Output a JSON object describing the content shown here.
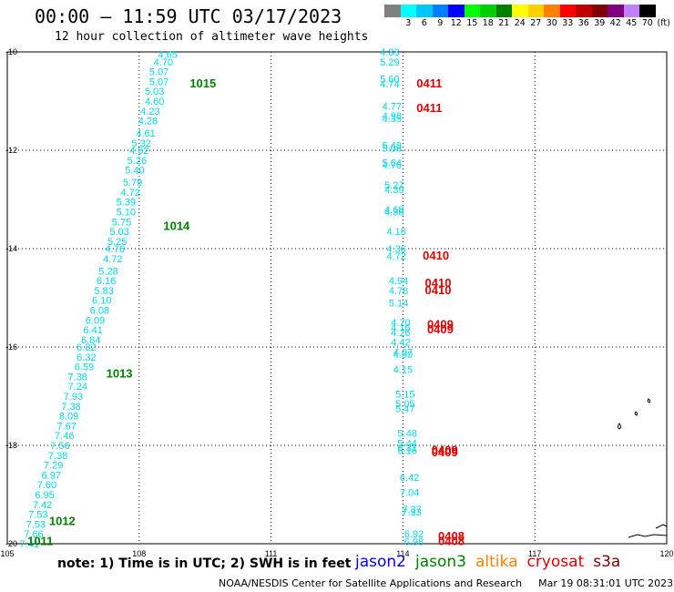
{
  "header": {
    "title": "00:00 – 11:59 UTC 03/17/2023",
    "subtitle": "12 hour collection of altimeter wave heights"
  },
  "legend": {
    "unit": "(ft)",
    "items": [
      {
        "label": "",
        "color": "#808080"
      },
      {
        "label": "3",
        "color": "#00ffff"
      },
      {
        "label": "6",
        "color": "#00c8ff"
      },
      {
        "label": "9",
        "color": "#0080ff"
      },
      {
        "label": "12",
        "color": "#0000ff"
      },
      {
        "label": "15",
        "color": "#00ff00"
      },
      {
        "label": "18",
        "color": "#00d000"
      },
      {
        "label": "21",
        "color": "#008000"
      },
      {
        "label": "24",
        "color": "#ffff00"
      },
      {
        "label": "27",
        "color": "#ffd000"
      },
      {
        "label": "30",
        "color": "#ff8000"
      },
      {
        "label": "33",
        "color": "#ff0000"
      },
      {
        "label": "36",
        "color": "#c00000"
      },
      {
        "label": "39",
        "color": "#800000"
      },
      {
        "label": "42",
        "color": "#800080"
      },
      {
        "label": "45",
        "color": "#c080ff"
      },
      {
        "label": "70",
        "color": "#000000"
      }
    ]
  },
  "map": {
    "lon_ticks": [
      "105",
      "108",
      "111",
      "114",
      "117",
      "120"
    ],
    "lat_ticks": [
      "-10",
      "-12",
      "-14",
      "-16",
      "-18",
      "-20"
    ],
    "wave_color": "#00d8e8",
    "time_colors": {
      "jason3": "#008000",
      "cryosat": "#e00000"
    },
    "track1": [
      {
        "lon": 108.65,
        "lat": -10.05,
        "v": "4.65"
      },
      {
        "lon": 108.55,
        "lat": -10.2,
        "v": "4.70"
      },
      {
        "lon": 108.45,
        "lat": -10.4,
        "v": "5.07"
      },
      {
        "lon": 108.45,
        "lat": -10.6,
        "v": "5.07"
      },
      {
        "lon": 108.35,
        "lat": -10.8,
        "v": "5.03"
      },
      {
        "lon": 108.35,
        "lat": -11.0,
        "v": "4.60"
      },
      {
        "lon": 108.25,
        "lat": -11.2,
        "v": "4.23"
      },
      {
        "lon": 108.2,
        "lat": -11.4,
        "v": "4.28"
      },
      {
        "lon": 108.15,
        "lat": -11.65,
        "v": "4.61"
      },
      {
        "lon": 108.05,
        "lat": -11.85,
        "v": "5.32"
      },
      {
        "lon": 108.0,
        "lat": -12.0,
        "v": "4.62"
      },
      {
        "lon": 107.95,
        "lat": -12.2,
        "v": "5.26"
      },
      {
        "lon": 107.9,
        "lat": -12.4,
        "v": "5.40"
      },
      {
        "lon": 107.85,
        "lat": -12.65,
        "v": "5.79"
      },
      {
        "lon": 107.8,
        "lat": -12.85,
        "v": "4.72"
      },
      {
        "lon": 107.7,
        "lat": -13.05,
        "v": "5.39"
      },
      {
        "lon": 107.7,
        "lat": -13.25,
        "v": "5.10"
      },
      {
        "lon": 107.6,
        "lat": -13.45,
        "v": "5.75"
      },
      {
        "lon": 107.55,
        "lat": -13.65,
        "v": "5.03"
      },
      {
        "lon": 107.5,
        "lat": -13.85,
        "v": "5.25"
      },
      {
        "lon": 107.45,
        "lat": -14.0,
        "v": "4.76"
      },
      {
        "lon": 107.4,
        "lat": -14.2,
        "v": "4.72"
      },
      {
        "lon": 107.3,
        "lat": -14.45,
        "v": "5.28"
      },
      {
        "lon": 107.25,
        "lat": -14.65,
        "v": "6.16"
      },
      {
        "lon": 107.2,
        "lat": -14.85,
        "v": "5.83"
      },
      {
        "lon": 107.15,
        "lat": -15.05,
        "v": "6.10"
      },
      {
        "lon": 107.1,
        "lat": -15.25,
        "v": "6.08"
      },
      {
        "lon": 107.0,
        "lat": -15.45,
        "v": "6.09"
      },
      {
        "lon": 106.95,
        "lat": -15.65,
        "v": "6.41"
      },
      {
        "lon": 106.9,
        "lat": -15.85,
        "v": "6.84"
      },
      {
        "lon": 106.8,
        "lat": -16.0,
        "v": "6.82"
      },
      {
        "lon": 106.8,
        "lat": -16.2,
        "v": "6.32"
      },
      {
        "lon": 106.75,
        "lat": -16.4,
        "v": "6.59"
      },
      {
        "lon": 106.6,
        "lat": -16.6,
        "v": "7.38"
      },
      {
        "lon": 106.6,
        "lat": -16.8,
        "v": "7.24"
      },
      {
        "lon": 106.5,
        "lat": -17.0,
        "v": "7.93"
      },
      {
        "lon": 106.45,
        "lat": -17.2,
        "v": "7.38"
      },
      {
        "lon": 106.4,
        "lat": -17.4,
        "v": "8.09"
      },
      {
        "lon": 106.35,
        "lat": -17.6,
        "v": "7.67"
      },
      {
        "lon": 106.3,
        "lat": -17.8,
        "v": "7.46"
      },
      {
        "lon": 106.2,
        "lat": -18.0,
        "v": "7.56"
      },
      {
        "lon": 106.15,
        "lat": -18.2,
        "v": "7.38"
      },
      {
        "lon": 106.05,
        "lat": -18.4,
        "v": "7.29"
      },
      {
        "lon": 106.0,
        "lat": -18.6,
        "v": "6.97"
      },
      {
        "lon": 105.9,
        "lat": -18.8,
        "v": "7.60"
      },
      {
        "lon": 105.85,
        "lat": -19.0,
        "v": "6.95"
      },
      {
        "lon": 105.8,
        "lat": -19.2,
        "v": "7.42"
      },
      {
        "lon": 105.7,
        "lat": -19.4,
        "v": "7.53"
      },
      {
        "lon": 105.65,
        "lat": -19.6,
        "v": "7.53"
      },
      {
        "lon": 105.6,
        "lat": -19.8,
        "v": "7.66"
      },
      {
        "lon": 105.5,
        "lat": -20.0,
        "v": "7.41"
      }
    ],
    "track1_times": [
      {
        "lon": 109.45,
        "lat": -10.65,
        "v": "1015"
      },
      {
        "lon": 108.85,
        "lat": -13.55,
        "v": "1014"
      },
      {
        "lon": 107.55,
        "lat": -16.55,
        "v": "1013"
      },
      {
        "lon": 106.25,
        "lat": -19.55,
        "v": "1012"
      },
      {
        "lon": 105.75,
        "lat": -19.95,
        "v": "1011"
      }
    ],
    "track2": [
      {
        "lon": 113.7,
        "lat": -10.0,
        "v": "4.83"
      },
      {
        "lon": 113.7,
        "lat": -10.2,
        "v": "5.29"
      },
      {
        "lon": 113.7,
        "lat": -10.55,
        "v": "5.60"
      },
      {
        "lon": 113.7,
        "lat": -10.65,
        "v": "4.74"
      },
      {
        "lon": 113.75,
        "lat": -11.1,
        "v": "4.77"
      },
      {
        "lon": 113.75,
        "lat": -11.3,
        "v": "4.98"
      },
      {
        "lon": 113.75,
        "lat": -11.35,
        "v": "4.35"
      },
      {
        "lon": 113.75,
        "lat": -11.9,
        "v": "5.48"
      },
      {
        "lon": 113.75,
        "lat": -11.95,
        "v": "5.08"
      },
      {
        "lon": 113.75,
        "lat": -12.25,
        "v": "5.64"
      },
      {
        "lon": 113.75,
        "lat": -12.3,
        "v": "4.76"
      },
      {
        "lon": 113.8,
        "lat": -12.7,
        "v": "5.27"
      },
      {
        "lon": 113.8,
        "lat": -12.8,
        "v": "4.39"
      },
      {
        "lon": 113.8,
        "lat": -13.2,
        "v": "4.68"
      },
      {
        "lon": 113.8,
        "lat": -13.25,
        "v": "4.38"
      },
      {
        "lon": 113.85,
        "lat": -13.65,
        "v": "4.16"
      },
      {
        "lon": 113.85,
        "lat": -14.0,
        "v": "4.36"
      },
      {
        "lon": 113.85,
        "lat": -14.15,
        "v": "4.72"
      },
      {
        "lon": 113.9,
        "lat": -14.65,
        "v": "4.94"
      },
      {
        "lon": 113.9,
        "lat": -14.85,
        "v": "4.78"
      },
      {
        "lon": 113.9,
        "lat": -15.1,
        "v": "5.14"
      },
      {
        "lon": 113.95,
        "lat": -15.5,
        "v": "4.70"
      },
      {
        "lon": 113.95,
        "lat": -15.6,
        "v": "4.16"
      },
      {
        "lon": 113.95,
        "lat": -15.7,
        "v": "4.26"
      },
      {
        "lon": 113.95,
        "lat": -15.9,
        "v": "4.42"
      },
      {
        "lon": 114.0,
        "lat": -16.1,
        "v": "4.07"
      },
      {
        "lon": 114.0,
        "lat": -16.15,
        "v": "4.80"
      },
      {
        "lon": 114.0,
        "lat": -16.45,
        "v": "4.15"
      },
      {
        "lon": 114.05,
        "lat": -16.95,
        "v": "5.15"
      },
      {
        "lon": 114.05,
        "lat": -17.15,
        "v": "5.05"
      },
      {
        "lon": 114.05,
        "lat": -17.25,
        "v": "5.47"
      },
      {
        "lon": 114.1,
        "lat": -17.75,
        "v": "5.48"
      },
      {
        "lon": 114.1,
        "lat": -17.95,
        "v": "5.44"
      },
      {
        "lon": 114.1,
        "lat": -18.05,
        "v": "6.31"
      },
      {
        "lon": 114.1,
        "lat": -18.1,
        "v": "6.16"
      },
      {
        "lon": 114.15,
        "lat": -18.65,
        "v": "6.42"
      },
      {
        "lon": 114.15,
        "lat": -18.95,
        "v": "7.04"
      },
      {
        "lon": 114.2,
        "lat": -19.3,
        "v": "7.37"
      },
      {
        "lon": 114.2,
        "lat": -19.35,
        "v": "7.33"
      },
      {
        "lon": 114.25,
        "lat": -19.8,
        "v": "6.92"
      },
      {
        "lon": 114.25,
        "lat": -19.95,
        "v": "6.98"
      }
    ],
    "track2_times": [
      {
        "lon": 114.6,
        "lat": -10.65,
        "v": "0411"
      },
      {
        "lon": 114.6,
        "lat": -11.15,
        "v": "0411"
      },
      {
        "lon": 114.75,
        "lat": -14.15,
        "v": "0410"
      },
      {
        "lon": 114.8,
        "lat": -14.7,
        "v": "0410"
      },
      {
        "lon": 114.8,
        "lat": -14.85,
        "v": "0410"
      },
      {
        "lon": 114.85,
        "lat": -15.55,
        "v": "0409"
      },
      {
        "lon": 114.85,
        "lat": -15.65,
        "v": "0409"
      },
      {
        "lon": 114.95,
        "lat": -18.1,
        "v": "0409"
      },
      {
        "lon": 114.95,
        "lat": -18.15,
        "v": "0409"
      },
      {
        "lon": 115.1,
        "lat": -19.85,
        "v": "0408"
      },
      {
        "lon": 115.1,
        "lat": -19.95,
        "v": "0408"
      }
    ]
  },
  "footer": {
    "note": "note:  1) Time is in UTC;  2) SWH is in feet",
    "satellites": [
      {
        "name": "jason2",
        "color": "#0000ff"
      },
      {
        "name": "jason3",
        "color": "#008000"
      },
      {
        "name": "altika",
        "color": "#ff8000"
      },
      {
        "name": "cryosat",
        "color": "#e00000"
      },
      {
        "name": "s3a",
        "color": "#800000"
      }
    ],
    "credit": "NOAA/NESDIS Center for Satellite Applications and Research",
    "timestamp": "Mar 19 08:31:01 UTC 2023"
  }
}
